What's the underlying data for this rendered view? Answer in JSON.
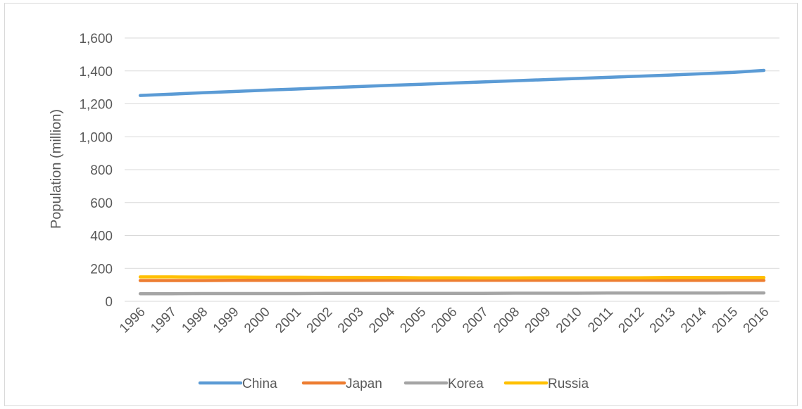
{
  "chart_data": {
    "type": "line",
    "title": "",
    "xlabel": "",
    "ylabel": "Population (million)",
    "ylim": [
      0,
      1600
    ],
    "yticks": [
      "0",
      "200",
      "400",
      "600",
      "800",
      "1,000",
      "1,200",
      "1,400",
      "1,600"
    ],
    "ytick_values": [
      0,
      200,
      400,
      600,
      800,
      1000,
      1200,
      1400,
      1600
    ],
    "grid": true,
    "legend_position": "bottom",
    "x": [
      "1996",
      "1997",
      "1998",
      "1999",
      "2000",
      "2001",
      "2002",
      "2003",
      "2004",
      "2005",
      "2006",
      "2007",
      "2008",
      "2009",
      "2010",
      "2011",
      "2012",
      "2013",
      "2014",
      "2015",
      "2016"
    ],
    "series": [
      {
        "name": "China",
        "color": "#5b9bd5",
        "values": [
          1251,
          1259,
          1267,
          1275,
          1283,
          1290,
          1298,
          1305,
          1312,
          1319,
          1326,
          1333,
          1340,
          1347,
          1354,
          1361,
          1368,
          1375,
          1383,
          1391,
          1403
        ]
      },
      {
        "name": "Japan",
        "color": "#ed7d31",
        "values": [
          126,
          126,
          126,
          127,
          127,
          127,
          127,
          127,
          128,
          128,
          128,
          128,
          128,
          128,
          128,
          128,
          128,
          127,
          127,
          127,
          127
        ]
      },
      {
        "name": "Korea",
        "color": "#a5a5a5",
        "values": [
          46,
          46,
          47,
          47,
          47,
          47,
          48,
          48,
          48,
          48,
          48,
          48,
          49,
          49,
          49,
          50,
          50,
          50,
          50,
          51,
          51
        ]
      },
      {
        "name": "Russia",
        "color": "#ffc000",
        "values": [
          148,
          148,
          147,
          147,
          146,
          146,
          145,
          145,
          144,
          143,
          143,
          142,
          142,
          143,
          143,
          143,
          143,
          144,
          144,
          144,
          144
        ]
      }
    ]
  }
}
